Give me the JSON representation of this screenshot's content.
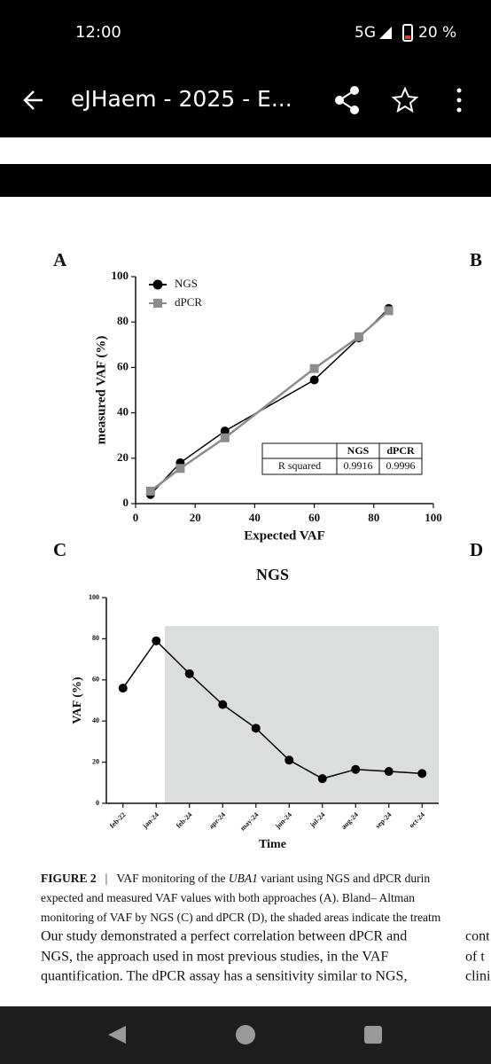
{
  "status_bar": {
    "time": "12:00",
    "network": "5G",
    "battery": "20 %"
  },
  "toolbar": {
    "title": "eJHaem - 2025 - E..."
  },
  "panel_labels": [
    "A",
    "B",
    "C",
    "D"
  ],
  "chart_data": [
    {
      "type": "line",
      "xlabel": "Expected VAF",
      "ylabel": "measured VAF (%)",
      "x": [
        5,
        15,
        30,
        60,
        75,
        85
      ],
      "series": [
        {
          "name": "NGS",
          "color": "#000000",
          "marker": "circle",
          "values": [
            4,
            18,
            32,
            54.5,
            73,
            86
          ]
        },
        {
          "name": "dPCR",
          "color": "#8c8c8c",
          "marker": "square",
          "values": [
            5.5,
            15.5,
            29,
            59.5,
            73.5,
            85
          ]
        }
      ],
      "xlim": [
        0,
        100
      ],
      "xticks": [
        0,
        20,
        40,
        60,
        80,
        100
      ],
      "ylim": [
        0,
        100
      ],
      "yticks": [
        0,
        20,
        40,
        60,
        80,
        100
      ],
      "legend": "upper left"
    },
    {
      "type": "line",
      "title": "NGS",
      "xlabel": "Time",
      "ylabel": "VAF (%)",
      "categories": [
        "feb-22",
        "jan-24",
        "feb-24",
        "apr-24",
        "may-24",
        "jun-24",
        "jul-24",
        "aug-24",
        "sep-24",
        "oct-24"
      ],
      "values": [
        56,
        79,
        63,
        48,
        36.5,
        21,
        12,
        16.5,
        15.5,
        14.5
      ],
      "color": "#000000",
      "ylim": [
        0,
        100
      ],
      "yticks": [
        0,
        20,
        40,
        60,
        80,
        100
      ]
    }
  ],
  "table": {
    "header": [
      "NGS",
      "dPCR"
    ],
    "rows": [
      [
        "R squared",
        "0.9916",
        "0.9996"
      ]
    ]
  },
  "caption": {
    "label": "FIGURE 2",
    "separator": "|",
    "line1": [
      "VAF monitoring of the ",
      "UBA1",
      " variant using NGS and dPCR durin"
    ],
    "line2": "expected and measured VAF values with both approaches (A). Bland– Altman",
    "line3": "monitoring of VAF by NGS (C) and dPCR (D), the shaded areas indicate the treatm"
  },
  "body": {
    "left": [
      "Our study demonstrated a perfect correlation between dPCR and",
      "NGS, the approach used in most previous studies, in the VAF",
      "quantification. The dPCR assay has a sensitivity similar to NGS,"
    ],
    "right": [
      "cont",
      "of t",
      "clini"
    ]
  }
}
